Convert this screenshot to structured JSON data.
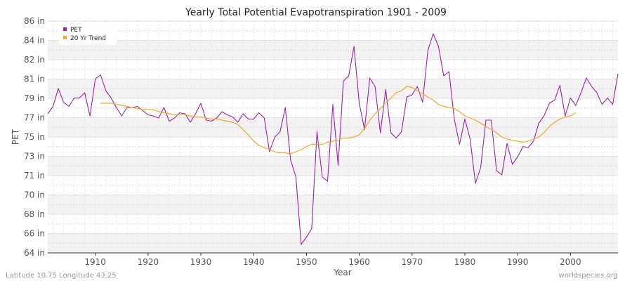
{
  "chart_data": {
    "type": "line",
    "title": "Yearly Total Potential Evapotranspiration 1901 - 2009",
    "xlabel": "Year",
    "ylabel": "PET",
    "xlim": [
      1901,
      2009
    ],
    "ylim": [
      64,
      86
    ],
    "y_ticks": [
      "64 in",
      "66 in",
      "68 in",
      "70 in",
      "71 in",
      "73 in",
      "75 in",
      "77 in",
      "79 in",
      "81 in",
      "82 in",
      "84 in",
      "86 in"
    ],
    "y_tick_values": [
      64,
      65.83,
      67.67,
      69.5,
      71.33,
      73.17,
      75,
      76.83,
      78.67,
      80.5,
      82.33,
      84.17,
      86
    ],
    "x_ticks": [
      "1910",
      "1920",
      "1930",
      "1940",
      "1950",
      "1960",
      "1970",
      "1980",
      "1990",
      "2000"
    ],
    "x_tick_values": [
      1910,
      1920,
      1930,
      1940,
      1950,
      1960,
      1970,
      1980,
      1990,
      2000
    ],
    "grid": true,
    "legend_position": "top-left",
    "colors": {
      "pet": "#a020a8",
      "trend": "#f5a623",
      "band": "#f2f2f2"
    },
    "series": [
      {
        "name": "PET",
        "color": "#a020a8",
        "x_start": 1901,
        "values": [
          77.2,
          77.9,
          79.6,
          78.3,
          77.9,
          78.7,
          78.7,
          79.2,
          77.0,
          80.5,
          80.9,
          79.4,
          78.7,
          77.8,
          77.0,
          77.8,
          77.8,
          77.9,
          77.5,
          77.1,
          77.0,
          76.8,
          77.8,
          76.5,
          76.8,
          77.3,
          77.2,
          76.4,
          77.2,
          78.2,
          76.6,
          76.5,
          76.8,
          77.4,
          77.1,
          76.9,
          76.4,
          77.2,
          76.7,
          76.7,
          77.3,
          76.8,
          73.6,
          75.0,
          75.5,
          77.8,
          72.8,
          71.2,
          64.8,
          65.5,
          66.3,
          75.5,
          71.2,
          70.8,
          78.1,
          72.3,
          80.3,
          80.8,
          83.6,
          78.2,
          75.7,
          80.6,
          79.8,
          75.4,
          79.5,
          75.4,
          74.9,
          75.5,
          78.8,
          79.0,
          79.8,
          78.3,
          83.2,
          84.8,
          83.6,
          80.8,
          81.2,
          76.7,
          74.3,
          76.7,
          74.8,
          70.6,
          72.1,
          76.6,
          76.6,
          71.8,
          71.4,
          74.4,
          72.4,
          73.1,
          74.1,
          74.0,
          74.6,
          76.3,
          77.0,
          78.2,
          78.5,
          79.9,
          77.0,
          78.7,
          78.0,
          79.2,
          80.6,
          79.8,
          79.2,
          78.1,
          78.7,
          78.1,
          81.0
        ]
      },
      {
        "name": "20 Yr Trend",
        "color": "#f5a623",
        "x_start": 1911,
        "values": [
          78.2,
          78.2,
          78.2,
          78.1,
          78.0,
          77.9,
          77.8,
          77.7,
          77.6,
          77.6,
          77.6,
          77.4,
          77.3,
          77.2,
          77.1,
          77.1,
          77.1,
          77.0,
          76.9,
          76.9,
          76.8,
          76.7,
          76.7,
          76.6,
          76.5,
          76.4,
          76.2,
          75.7,
          75.2,
          74.6,
          74.2,
          74.0,
          73.8,
          73.6,
          73.5,
          73.5,
          73.4,
          73.6,
          73.8,
          74.1,
          74.3,
          74.3,
          74.3,
          74.5,
          74.6,
          74.7,
          74.9,
          74.9,
          75.0,
          75.2,
          75.8,
          76.6,
          77.2,
          77.7,
          78.2,
          78.7,
          79.2,
          79.4,
          79.8,
          79.7,
          79.4,
          79.1,
          78.8,
          78.5,
          78.1,
          77.9,
          77.8,
          77.7,
          77.4,
          77.0,
          76.8,
          76.6,
          76.3,
          76.0,
          75.7,
          75.4,
          75.0,
          74.8,
          74.7,
          74.6,
          74.5,
          74.6,
          74.8,
          75.0,
          75.4,
          76.0,
          76.4,
          76.7,
          76.9,
          77.0,
          77.3
        ]
      }
    ]
  },
  "footer": {
    "left": "Latitude 10.75 Longitude 43.25",
    "right": "worldspecies.org"
  }
}
